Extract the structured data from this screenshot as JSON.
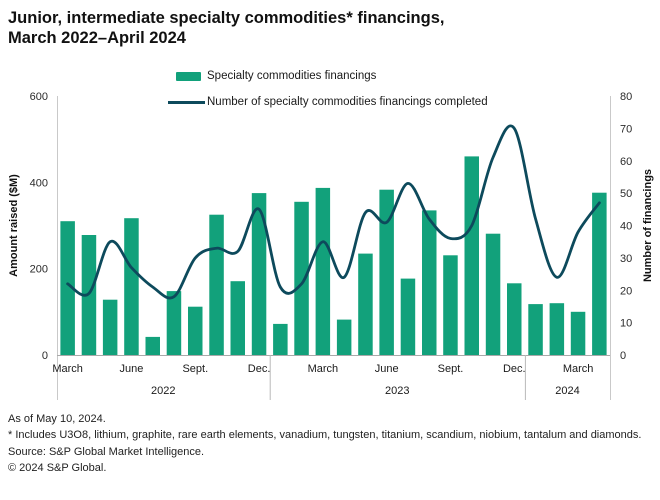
{
  "title": {
    "line1": "Junior, intermediate specialty commodities* financings,",
    "line2": "March 2022–April 2024"
  },
  "legend": {
    "bar_label": "Specialty commodities financings",
    "line_label": "Number of specialty commodities financings completed"
  },
  "footer": {
    "as_of": "As of May 10, 2024.",
    "note": "* Includes U3O8, lithium, graphite, rare earth elements, vanadium, tungsten, titanium, scandium, niobium, tantalum and diamonds.",
    "source": "Source: S&P Global Market Intelligence.",
    "copyright": "© 2024 S&P Global."
  },
  "colors": {
    "bar": "#12a17b",
    "line": "#0d4a5c",
    "axis_line": "#c9c9c9",
    "baseline": "#a9a9a9",
    "separator": "#b9b9b9",
    "tick_text": "#2b2b2b",
    "label_text": "#1a1a1a"
  },
  "chart_data": {
    "type": "combo",
    "title": "Junior, intermediate specialty commodities* financings, March 2022–April 2024",
    "grid": false,
    "legend_position": "top",
    "categories": [
      "March 2022",
      "April 2022",
      "May 2022",
      "June 2022",
      "July 2022",
      "August 2022",
      "September 2022",
      "October 2022",
      "November 2022",
      "December 2022",
      "January 2023",
      "February 2023",
      "March 2023",
      "April 2023",
      "May 2023",
      "June 2023",
      "July 2023",
      "August 2023",
      "September 2023",
      "October 2023",
      "November 2023",
      "December 2023",
      "January 2024",
      "February 2024",
      "March 2024",
      "April 2024"
    ],
    "series": [
      {
        "name": "Specialty commodities financings",
        "type": "bar",
        "axis": "left",
        "values": [
          310,
          278,
          128,
          317,
          42,
          148,
          112,
          325,
          171,
          375,
          72,
          355,
          387,
          82,
          235,
          383,
          177,
          335,
          231,
          460,
          281,
          166,
          118,
          120,
          100,
          376
        ]
      },
      {
        "name": "Number of specialty commodities financings completed",
        "type": "line",
        "axis": "right",
        "values": [
          22,
          19,
          35,
          27,
          21,
          18,
          30,
          33,
          32,
          45,
          21,
          22,
          35,
          24,
          44,
          41,
          53,
          42,
          36,
          40,
          61,
          70,
          42,
          24,
          38,
          47
        ]
      }
    ],
    "left_axis": {
      "label": "Amount raised ($M)",
      "min": 0,
      "max": 600,
      "ticks": [
        0,
        200,
        400,
        600
      ]
    },
    "right_axis": {
      "label": "Number of financings",
      "min": 0,
      "max": 80,
      "ticks": [
        0,
        10,
        20,
        30,
        40,
        50,
        60,
        70,
        80
      ]
    },
    "x_axis": {
      "month_ticks": [
        {
          "index": 0,
          "label": "March"
        },
        {
          "index": 3,
          "label": "June"
        },
        {
          "index": 6,
          "label": "Sept."
        },
        {
          "index": 9,
          "label": "Dec."
        },
        {
          "index": 12,
          "label": "March"
        },
        {
          "index": 15,
          "label": "June"
        },
        {
          "index": 18,
          "label": "Sept."
        },
        {
          "index": 21,
          "label": "Dec."
        },
        {
          "index": 24,
          "label": "March"
        }
      ],
      "year_groups": [
        {
          "label": "2022",
          "start": 0,
          "end": 10
        },
        {
          "label": "2023",
          "start": 10,
          "end": 22
        },
        {
          "label": "2024",
          "start": 22,
          "end": 26
        }
      ]
    }
  }
}
